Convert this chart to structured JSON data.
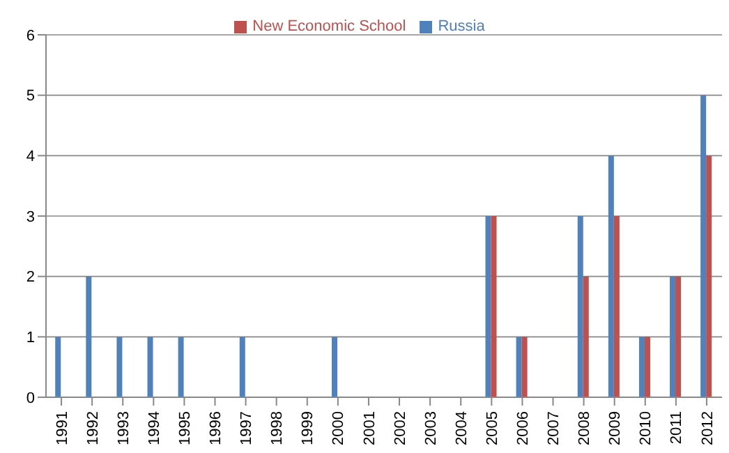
{
  "chart_data": {
    "type": "bar",
    "categories": [
      "1991",
      "1992",
      "1993",
      "1994",
      "1995",
      "1996",
      "1997",
      "1998",
      "1999",
      "2000",
      "2001",
      "2002",
      "2003",
      "2004",
      "2005",
      "2006",
      "2007",
      "2008",
      "2009",
      "2010",
      "2011",
      "2012"
    ],
    "series": [
      {
        "name": "Russia",
        "color": "#4f81bd",
        "values": [
          1,
          2,
          1,
          1,
          1,
          0,
          1,
          0,
          0,
          1,
          0,
          0,
          0,
          0,
          3,
          1,
          0,
          3,
          4,
          1,
          2,
          5
        ]
      },
      {
        "name": "New Economic School",
        "color": "#c0504d",
        "values": [
          0,
          0,
          0,
          0,
          0,
          0,
          0,
          0,
          0,
          0,
          0,
          0,
          0,
          0,
          3,
          1,
          0,
          2,
          3,
          1,
          2,
          4
        ]
      }
    ],
    "ylim": [
      0,
      6
    ],
    "yticks": [
      0,
      1,
      2,
      3,
      4,
      5,
      6
    ],
    "grid": "y",
    "legend": "top"
  }
}
